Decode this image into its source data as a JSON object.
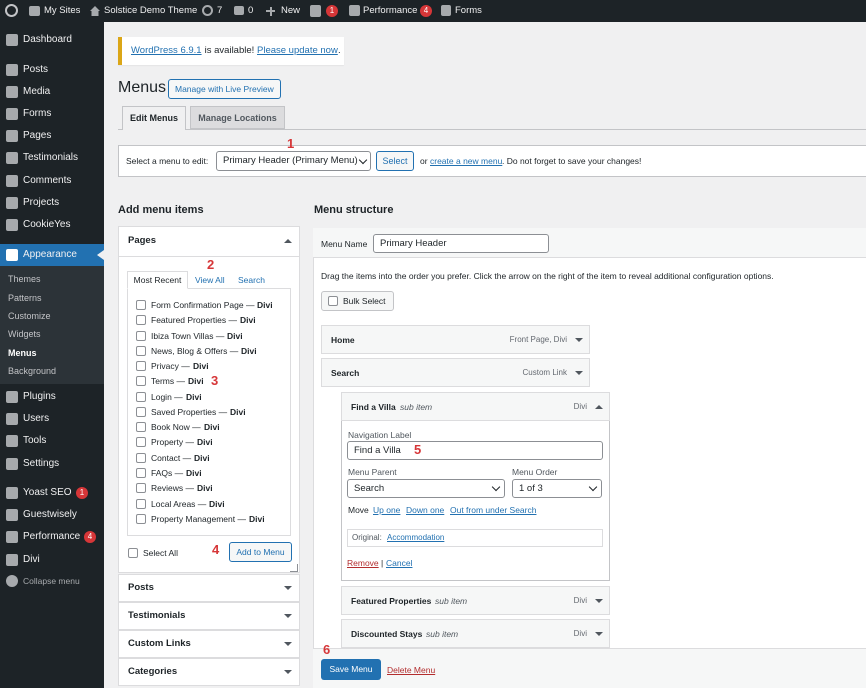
{
  "admin_bar": {
    "my_sites": "My Sites",
    "site": "Solstice Demo Theme",
    "updates": 7,
    "comments": 0,
    "new": "New",
    "yoast_badge": 1,
    "performance": "Performance",
    "performance_badge": 4,
    "forms": "Forms"
  },
  "sidebar": {
    "items": [
      {
        "label": "Dashboard"
      },
      {
        "label": "Posts"
      },
      {
        "label": "Media"
      },
      {
        "label": "Forms"
      },
      {
        "label": "Pages"
      },
      {
        "label": "Testimonials"
      },
      {
        "label": "Comments"
      },
      {
        "label": "Projects"
      },
      {
        "label": "CookieYes"
      },
      {
        "label": "Appearance"
      },
      {
        "label": "Plugins"
      },
      {
        "label": "Users"
      },
      {
        "label": "Tools"
      },
      {
        "label": "Settings"
      },
      {
        "label": "Yoast SEO",
        "badge": 1
      },
      {
        "label": "Guestwisely"
      },
      {
        "label": "Performance",
        "badge": 4
      },
      {
        "label": "Divi"
      },
      {
        "label": "Collapse menu"
      }
    ],
    "submenu": [
      "Themes",
      "Patterns",
      "Customize",
      "Widgets",
      "Menus",
      "Background"
    ]
  },
  "notice": {
    "version_link": "WordPress 6.9.1",
    "text": " is available! ",
    "update_link": "Please update now",
    "end": "."
  },
  "header": {
    "title": "Menus",
    "live_preview": "Manage with Live Preview"
  },
  "tabs": [
    "Edit Menus",
    "Manage Locations"
  ],
  "select_bar": {
    "label": "Select a menu to edit:",
    "selected": "Primary Header (Primary Menu)",
    "button": "Select",
    "or": "or",
    "create_link": "create a new menu",
    "note": ". Do not forget to save your changes!"
  },
  "annotations": [
    1,
    2,
    3,
    4,
    5,
    6
  ],
  "add_items": {
    "heading": "Add menu items",
    "pages": {
      "title": "Pages",
      "tabs": [
        "Most Recent",
        "View All",
        "Search"
      ],
      "items": [
        {
          "title": "Form Confirmation Page —",
          "state": "Divi"
        },
        {
          "title": "Featured Properties —",
          "state": "Divi"
        },
        {
          "title": "Ibiza Town Villas —",
          "state": "Divi"
        },
        {
          "title": "News, Blog & Offers —",
          "state": "Divi"
        },
        {
          "title": "Privacy —",
          "state": "Divi"
        },
        {
          "title": "Terms —",
          "state": "Divi"
        },
        {
          "title": "Login —",
          "state": "Divi"
        },
        {
          "title": "Saved Properties —",
          "state": "Divi"
        },
        {
          "title": "Book Now —",
          "state": "Divi"
        },
        {
          "title": "Property —",
          "state": "Divi"
        },
        {
          "title": "Contact —",
          "state": "Divi"
        },
        {
          "title": "FAQs —",
          "state": "Divi"
        },
        {
          "title": "Reviews —",
          "state": "Divi"
        },
        {
          "title": "Local Areas —",
          "state": "Divi"
        },
        {
          "title": "Property Management —",
          "state": "Divi"
        }
      ],
      "select_all": "Select All",
      "add_button": "Add to Menu"
    },
    "panels": [
      "Posts",
      "Testimonials",
      "Custom Links",
      "Categories"
    ]
  },
  "structure": {
    "heading": "Menu structure",
    "name_label": "Menu Name",
    "name_value": "Primary Header",
    "instructions": "Drag the items into the order you prefer. Click the arrow on the right of the item to reveal additional configuration options.",
    "bulk_select": "Bulk Select",
    "items": [
      {
        "title": "Home",
        "meta": "Front Page, Divi"
      },
      {
        "title": "Search",
        "meta": "Custom Link"
      },
      {
        "title": "Find a Villa",
        "sub": "sub item",
        "meta": "Divi"
      },
      {
        "title": "Featured Properties",
        "sub": "sub item",
        "meta": "Divi"
      },
      {
        "title": "Discounted Stays",
        "sub": "sub item",
        "meta": "Divi"
      }
    ],
    "settings": {
      "nav_label": "Navigation Label",
      "nav_value": "Find a Villa",
      "parent_label": "Menu Parent",
      "parent_value": "Search",
      "order_label": "Menu Order",
      "order_value": "1 of 3",
      "move": "Move",
      "up": "Up one",
      "down": "Down one",
      "out": "Out from under Search",
      "original": "Original:",
      "original_link": "Accommodation",
      "remove": "Remove",
      "sep": "|",
      "cancel": "Cancel"
    },
    "save": "Save Menu",
    "delete": "Delete Menu"
  }
}
